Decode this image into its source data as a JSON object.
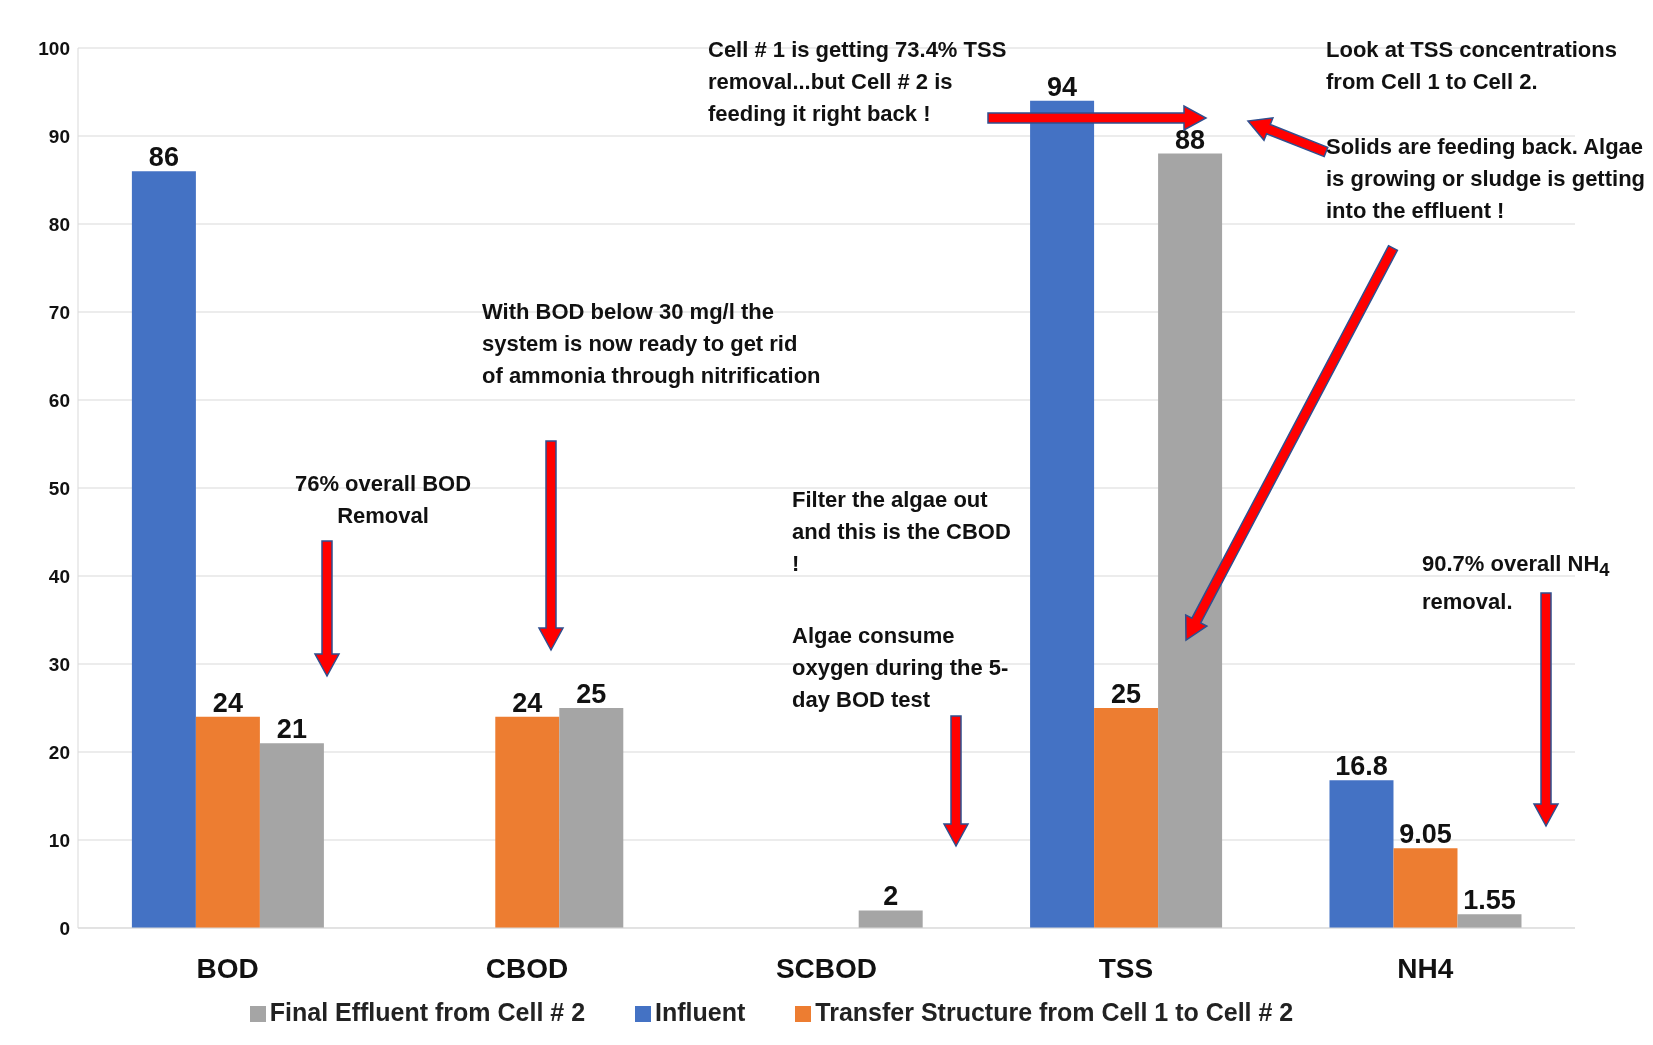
{
  "chart_data": {
    "type": "bar",
    "categories": [
      "BOD",
      "CBOD",
      "SCBOD",
      "TSS",
      "NH4"
    ],
    "series": [
      {
        "name": "Influent",
        "color": "#4472c4",
        "values": [
          86,
          null,
          null,
          94,
          16.8
        ]
      },
      {
        "name": "Transfer Structure from Cell 1 to Cell # 2",
        "color": "#ed7d31",
        "values": [
          24,
          24,
          null,
          25,
          9.05
        ]
      },
      {
        "name": "Final Effluent from Cell # 2",
        "color": "#a5a5a5",
        "values": [
          21,
          25,
          2,
          88,
          1.55
        ]
      }
    ],
    "ylim": [
      0,
      100
    ],
    "yticks": [
      0,
      10,
      20,
      30,
      40,
      50,
      60,
      70,
      80,
      90,
      100
    ],
    "grid": "y",
    "legend": "bottom",
    "data_labels": true,
    "annotations": [
      "Cell # 1 is getting 73.4% TSS removal...but Cell # 2 is feeding it right back !",
      "Look at TSS concentrations from Cell 1 to Cell 2.",
      "Solids are feeding back. Algae is growing or sludge is getting into the effluent !",
      "With BOD below 30 mg/l the system is now ready to get rid of ammonia through nitrification",
      "76% overall BOD Removal",
      "Filter the algae out and this is the CBOD !",
      "Algae consume oxygen during the 5-day BOD test",
      "90.7% overall NH$_{4}$ removal."
    ]
  }
}
